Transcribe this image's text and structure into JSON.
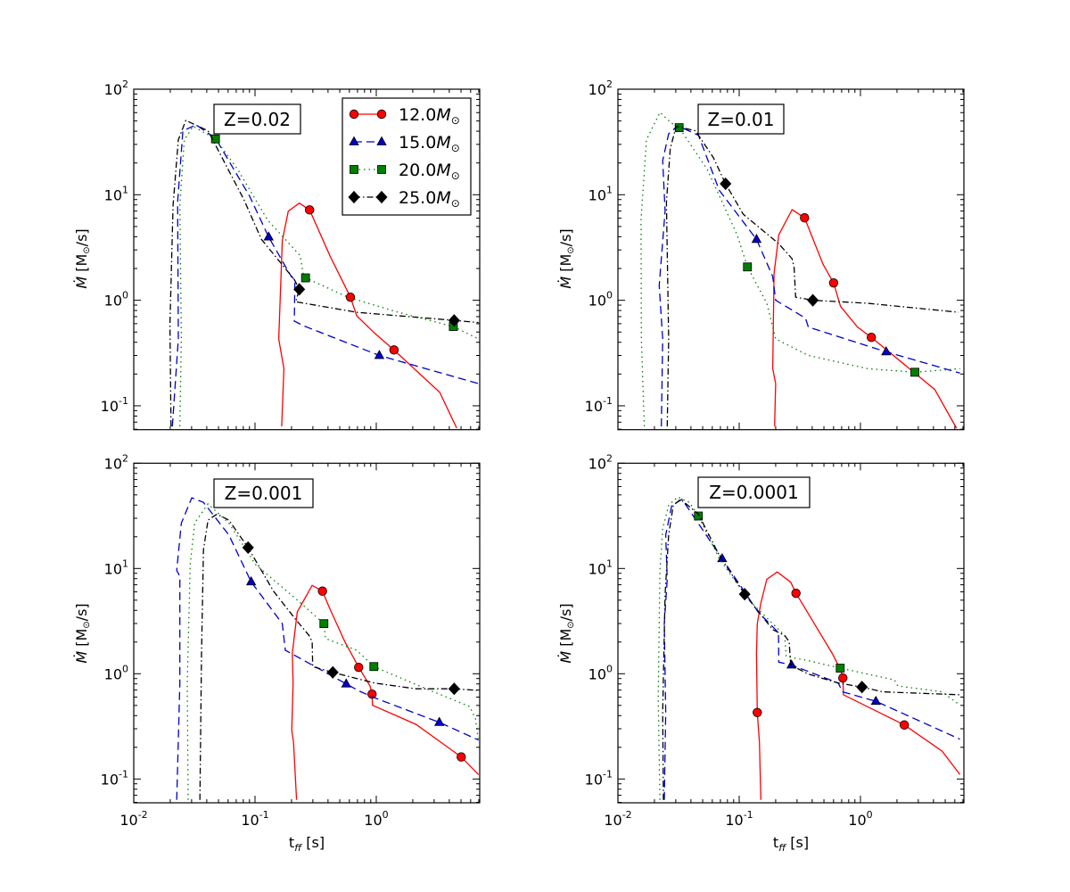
{
  "figure": {
    "x_label_main": "t",
    "x_label_sub": "ff",
    "x_label_unit": " [s]",
    "y_label_symbol": "Ṁ",
    "y_label_unit": " [M",
    "y_label_sun": "⊙",
    "y_label_end": "/s]"
  },
  "styles": {
    "12": {
      "color": "#ff0000",
      "dash": "none",
      "marker": "circle"
    },
    "15": {
      "color": "#0000cc",
      "dash": "dashed",
      "marker": "triangle"
    },
    "20": {
      "color": "#007f00",
      "dash": "dotted",
      "marker": "square"
    },
    "25": {
      "color": "#000000",
      "dash": "dashdot",
      "marker": "diamond"
    }
  },
  "legend": {
    "placement": "top-right of first panel",
    "entries": [
      {
        "key": "12",
        "label": "12.0",
        "unit": "M",
        "sub": "⊙"
      },
      {
        "key": "15",
        "label": "15.0",
        "unit": "M",
        "sub": "⊙"
      },
      {
        "key": "20",
        "label": "20.0",
        "unit": "M",
        "sub": "⊙"
      },
      {
        "key": "25",
        "label": "25.0",
        "unit": "M",
        "sub": "⊙"
      }
    ]
  },
  "chart_data": [
    {
      "type": "line",
      "title": "",
      "annotation": "Z=0.02",
      "xlabel": "",
      "ylabel": "Ṁ [M⊙/s]",
      "xscale": "log",
      "yscale": "log",
      "xlim": [
        0.01,
        7.13
      ],
      "ylim": [
        0.0594,
        100
      ],
      "xticks": [
        0.01,
        0.1,
        1
      ],
      "xtick_labels": [],
      "yticks": [
        0.1,
        1,
        10,
        100
      ],
      "ytick_labels": [
        [
          "10",
          "-1"
        ],
        [
          "10",
          "0"
        ],
        [
          "10",
          "1"
        ],
        [
          "10",
          "2"
        ]
      ],
      "grid": false,
      "series": [
        {
          "name": "12.0M⊙",
          "key": "12",
          "x": [
            0.166,
            0.173,
            0.157,
            0.168,
            0.188,
            0.232,
            0.282,
            0.415,
            0.612,
            0.689,
            0.966,
            1.4,
            3.34,
            4.61
          ],
          "y": [
            0.0638,
            0.225,
            0.43,
            3.66,
            6.99,
            8.33,
            7.18,
            2.64,
            1.07,
            0.713,
            0.49,
            0.338,
            0.134,
            0.0614
          ],
          "markers_x": [
            0.282,
            0.612,
            1.4
          ],
          "markers_y": [
            7.18,
            1.07,
            0.338
          ]
        },
        {
          "name": "15.0M⊙",
          "key": "15",
          "x": [
            0.0208,
            0.0233,
            0.023,
            0.0254,
            0.0327,
            0.0472,
            0.0903,
            0.1296,
            0.199,
            0.213,
            0.211,
            0.25,
            1.06,
            6.97
          ],
          "y": [
            0.0638,
            0.43,
            8.49,
            40.3,
            45.9,
            34.3,
            9.68,
            3.98,
            1.68,
            1.57,
            0.634,
            0.575,
            0.3,
            0.162
          ],
          "markers_x": [
            0.1296,
            1.06
          ],
          "markers_y": [
            3.98,
            0.3
          ]
        },
        {
          "name": "20.0M⊙",
          "key": "20",
          "x": [
            0.024,
            0.0247,
            0.024,
            0.0261,
            0.0309,
            0.0472,
            0.0721,
            0.127,
            0.236,
            0.249,
            0.261,
            0.582,
            1.52,
            4.32,
            6.97
          ],
          "y": [
            0.0638,
            0.43,
            7.96,
            33.2,
            44.4,
            33.8,
            17.3,
            5.75,
            2.64,
            1.79,
            1.63,
            1.07,
            0.77,
            0.564,
            0.43
          ],
          "markers_x": [
            0.0472,
            0.261,
            4.32
          ],
          "markers_y": [
            33.8,
            1.63,
            0.564
          ]
        },
        {
          "name": "25.0M⊙",
          "key": "25",
          "x": [
            0.0203,
            0.0199,
            0.0211,
            0.0233,
            0.0269,
            0.041,
            0.0807,
            0.113,
            0.211,
            0.232,
            0.217,
            0.689,
            4.39,
            6.97
          ],
          "y": [
            0.0638,
            0.594,
            7.96,
            33.2,
            50.6,
            40.4,
            9.08,
            3.78,
            1.57,
            1.27,
            0.968,
            0.77,
            0.644,
            0.615
          ],
          "markers_x": [
            0.232,
            4.39
          ],
          "markers_y": [
            1.27,
            0.644
          ]
        }
      ]
    },
    {
      "type": "line",
      "title": "",
      "annotation": "Z=0.01",
      "xlabel": "",
      "ylabel": "Ṁ [M⊙/s]",
      "xscale": "log",
      "yscale": "log",
      "xlim": [
        0.01,
        7.13
      ],
      "ylim": [
        0.0594,
        100
      ],
      "xticks": [
        0.01,
        0.1,
        1
      ],
      "xtick_labels": [],
      "yticks": [
        0.1,
        1,
        10,
        100
      ],
      "ytick_labels": [
        [
          "10",
          "-1"
        ],
        [
          "10",
          "0"
        ],
        [
          "10",
          "1"
        ],
        [
          "10",
          "2"
        ]
      ],
      "grid": false,
      "series": [
        {
          "name": "12.0M⊙",
          "key": "12",
          "x": [
            0.196,
            0.2,
            0.189,
            0.194,
            0.212,
            0.273,
            0.346,
            0.493,
            0.601,
            0.685,
            0.946,
            1.23,
            4.1,
            6.19
          ],
          "y": [
            0.0638,
            0.162,
            0.225,
            1.79,
            4.17,
            7.23,
            6.04,
            2.18,
            1.46,
            0.877,
            0.557,
            0.445,
            0.143,
            0.0614
          ],
          "markers_x": [
            0.346,
            0.601,
            1.23
          ],
          "markers_y": [
            6.04,
            1.46,
            0.445
          ]
        },
        {
          "name": "15.0M⊙",
          "key": "15",
          "x": [
            0.0228,
            0.0234,
            0.0219,
            0.0245,
            0.0234,
            0.0262,
            0.0311,
            0.0461,
            0.0686,
            0.139,
            0.189,
            0.2,
            0.352,
            0.372,
            1.63,
            6.62
          ],
          "y": [
            0.0638,
            0.43,
            1.38,
            7.0,
            21.1,
            37.8,
            45.0,
            36.6,
            11.0,
            3.78,
            1.68,
            1.0,
            0.678,
            0.557,
            0.325,
            0.204
          ],
          "markers_x": [
            0.139,
            1.63
          ],
          "markers_y": [
            3.78,
            0.325
          ]
        },
        {
          "name": "20.0M⊙",
          "key": "20",
          "x": [
            0.0165,
            0.0156,
            0.0155,
            0.0172,
            0.0222,
            0.0278,
            0.032,
            0.0546,
            0.0962,
            0.117,
            0.169,
            0.2,
            0.372,
            1.15,
            2.81,
            6.62
          ],
          "y": [
            0.0638,
            0.43,
            5.75,
            33.2,
            60.3,
            47.5,
            43.2,
            17.3,
            4.17,
            2.07,
            0.936,
            0.43,
            0.3,
            0.225,
            0.208,
            0.225
          ],
          "markers_x": [
            0.032,
            0.117,
            2.81
          ],
          "markers_y": [
            43.2,
            2.07,
            0.208
          ]
        },
        {
          "name": "25.0M⊙",
          "key": "25",
          "x": [
            0.0255,
            0.0262,
            0.0251,
            0.027,
            0.0302,
            0.0436,
            0.0612,
            0.0772,
            0.108,
            0.212,
            0.273,
            0.284,
            0.292,
            0.405,
            1.15,
            6.44
          ],
          "y": [
            0.0638,
            0.43,
            8.49,
            27.4,
            44.4,
            40.4,
            22.5,
            12.7,
            6.55,
            3.43,
            2.48,
            2.04,
            1.07,
            1.0,
            0.936,
            0.77
          ],
          "markers_x": [
            0.0772,
            0.405
          ],
          "markers_y": [
            12.7,
            1.0
          ]
        }
      ]
    },
    {
      "type": "line",
      "title": "",
      "annotation": "Z=0.001",
      "xlabel": "t_ff [s]",
      "ylabel": "Ṁ [M⊙/s]",
      "xscale": "log",
      "yscale": "log",
      "xlim": [
        0.01,
        7.13
      ],
      "ylim": [
        0.0594,
        100
      ],
      "xticks": [
        0.01,
        0.1,
        1
      ],
      "xtick_labels": [
        [
          "10",
          "-2"
        ],
        [
          "10",
          "-1"
        ],
        [
          "10",
          "0"
        ]
      ],
      "yticks": [
        0.1,
        1,
        10,
        100
      ],
      "ytick_labels": [
        [
          "10",
          "-1"
        ],
        [
          "10",
          "0"
        ],
        [
          "10",
          "1"
        ],
        [
          "10",
          "2"
        ]
      ],
      "grid": false,
      "series": [
        {
          "name": "12.0M⊙",
          "key": "12",
          "x": [
            0.22,
            0.208,
            0.201,
            0.206,
            0.203,
            0.223,
            0.296,
            0.36,
            0.415,
            0.55,
            0.716,
            0.889,
            0.923,
            0.93,
            2.13,
            5.02,
            6.97
          ],
          "y": [
            0.0634,
            0.224,
            0.29,
            0.817,
            1.56,
            3.87,
            6.92,
            6.09,
            4.13,
            2.02,
            1.15,
            0.766,
            0.64,
            0.502,
            0.33,
            0.162,
            0.11
          ],
          "markers_x": [
            0.36,
            0.716,
            0.923,
            5.02
          ],
          "markers_y": [
            6.09,
            1.15,
            0.64,
            0.162
          ]
        },
        {
          "name": "15.0M⊙",
          "key": "15",
          "x": [
            0.0226,
            0.024,
            0.024,
            0.0226,
            0.0247,
            0.0301,
            0.0376,
            0.0609,
            0.0929,
            0.168,
            0.178,
            0.296,
            0.565,
            0.729,
            0.966,
            3.31,
            6.97
          ],
          "y": [
            0.0634,
            0.817,
            8.41,
            9.58,
            27.0,
            46.9,
            42.5,
            20.8,
            7.48,
            2.99,
            1.67,
            1.21,
            0.8,
            0.682,
            0.592,
            0.345,
            0.234
          ],
          "markers_x": [
            0.0929,
            0.565,
            3.31
          ],
          "markers_y": [
            7.48,
            0.8,
            0.345
          ]
        },
        {
          "name": "20.0M⊙",
          "key": "20",
          "x": [
            0.0281,
            0.0276,
            0.0292,
            0.0318,
            0.041,
            0.0609,
            0.101,
            0.223,
            0.37,
            0.381,
            0.689,
            0.955,
            2.13,
            5.89,
            6.57,
            6.97
          ],
          "y": [
            0.0634,
            0.817,
            10.9,
            27.0,
            41.1,
            27.0,
            10.9,
            5.01,
            2.99,
            2.16,
            1.67,
            1.17,
            0.789,
            0.488,
            0.376,
            0.224
          ],
          "markers_x": [
            0.37,
            0.955
          ],
          "markers_y": [
            2.99,
            1.17
          ]
        },
        {
          "name": "25.0M⊙",
          "key": "25",
          "x": [
            0.0351,
            0.0362,
            0.0376,
            0.041,
            0.0485,
            0.0609,
            0.0877,
            0.142,
            0.211,
            0.279,
            0.296,
            0.299,
            0.438,
            0.966,
            2.13,
            4.39,
            6.97
          ],
          "y": [
            0.0634,
            1.56,
            15.1,
            28.8,
            32.8,
            28.8,
            15.8,
            6.09,
            3.4,
            2.31,
            2.02,
            1.17,
            1.03,
            0.817,
            0.719,
            0.719,
            0.695
          ],
          "markers_x": [
            0.0877,
            0.438,
            4.39
          ],
          "markers_y": [
            15.8,
            1.03,
            0.719
          ]
        }
      ]
    },
    {
      "type": "line",
      "title": "",
      "annotation": "Z=0.0001",
      "xlabel": "t_ff [s]",
      "ylabel": "Ṁ [M⊙/s]",
      "xscale": "log",
      "yscale": "log",
      "xlim": [
        0.01,
        7.13
      ],
      "ylim": [
        0.0594,
        100
      ],
      "xticks": [
        0.01,
        0.1,
        1
      ],
      "xtick_labels": [
        [
          "10",
          "-2"
        ],
        [
          "10",
          "-1"
        ],
        [
          "10",
          "0"
        ]
      ],
      "yticks": [
        0.1,
        1,
        10,
        100
      ],
      "ytick_labels": [
        [
          "10",
          "-1"
        ],
        [
          "10",
          "0"
        ],
        [
          "10",
          "1"
        ],
        [
          "10",
          "2"
        ]
      ],
      "grid": false,
      "series": [
        {
          "name": "12.0M⊙",
          "key": "12",
          "x": [
            0.151,
            0.147,
            0.141,
            0.139,
            0.141,
            0.151,
            0.169,
            0.206,
            0.266,
            0.294,
            0.417,
            0.585,
            0.686,
            0.716,
            0.724,
            2.3,
            4.72,
            6.62
          ],
          "y": [
            0.0634,
            0.224,
            0.428,
            1.56,
            2.99,
            4.7,
            7.89,
            9.27,
            7.4,
            5.82,
            2.99,
            1.56,
            1.09,
            0.912,
            0.631,
            0.326,
            0.184,
            0.11
          ],
          "markers_x": [
            0.141,
            0.294,
            0.716,
            2.3
          ],
          "markers_y": [
            0.428,
            5.82,
            0.912,
            0.326
          ]
        },
        {
          "name": "15.0M⊙",
          "key": "15",
          "x": [
            0.0241,
            0.0248,
            0.0241,
            0.0255,
            0.0248,
            0.0278,
            0.0338,
            0.0724,
            0.143,
            0.211,
            0.212,
            0.27,
            0.655,
            0.713,
            1.34,
            6.62
          ],
          "y": [
            0.0634,
            0.428,
            2.99,
            7.89,
            20.8,
            39.8,
            45.4,
            12.4,
            3.87,
            2.46,
            1.29,
            1.21,
            0.817,
            0.673,
            0.547,
            0.239
          ],
          "markers_x": [
            0.0724,
            0.27,
            1.34
          ],
          "markers_y": [
            12.4,
            1.21,
            0.547
          ]
        },
        {
          "name": "20.0M⊙",
          "key": "20",
          "x": [
            0.0222,
            0.0215,
            0.0222,
            0.0234,
            0.0262,
            0.0311,
            0.0389,
            0.0461,
            0.0686,
            0.12,
            0.212,
            0.237,
            0.244,
            0.372,
            0.681,
            1.91,
            2.03,
            4.72,
            6.62
          ],
          "y": [
            0.0634,
            0.592,
            9.58,
            23.8,
            39.8,
            47.8,
            42.5,
            31.5,
            12.4,
            5.01,
            2.62,
            2.31,
            1.46,
            1.33,
            1.13,
            0.873,
            0.766,
            0.673,
            0.502
          ],
          "markers_x": [
            0.0461,
            0.681
          ],
          "markers_y": [
            31.5,
            1.13
          ]
        },
        {
          "name": "25.0M⊙",
          "key": "25",
          "x": [
            0.0237,
            0.0234,
            0.0245,
            0.0262,
            0.0286,
            0.0329,
            0.0461,
            0.0686,
            0.111,
            0.189,
            0.237,
            0.258,
            0.266,
            0.372,
            0.655,
            1.03,
            1.53,
            6.62
          ],
          "y": [
            0.0634,
            0.428,
            5.7,
            20.8,
            39.8,
            45.4,
            32.8,
            13.3,
            5.7,
            2.62,
            2.31,
            2.02,
            1.21,
            0.993,
            0.817,
            0.747,
            0.673,
            0.631
          ],
          "markers_x": [
            0.111,
            1.03
          ],
          "markers_y": [
            5.7,
            0.747
          ]
        }
      ]
    }
  ]
}
